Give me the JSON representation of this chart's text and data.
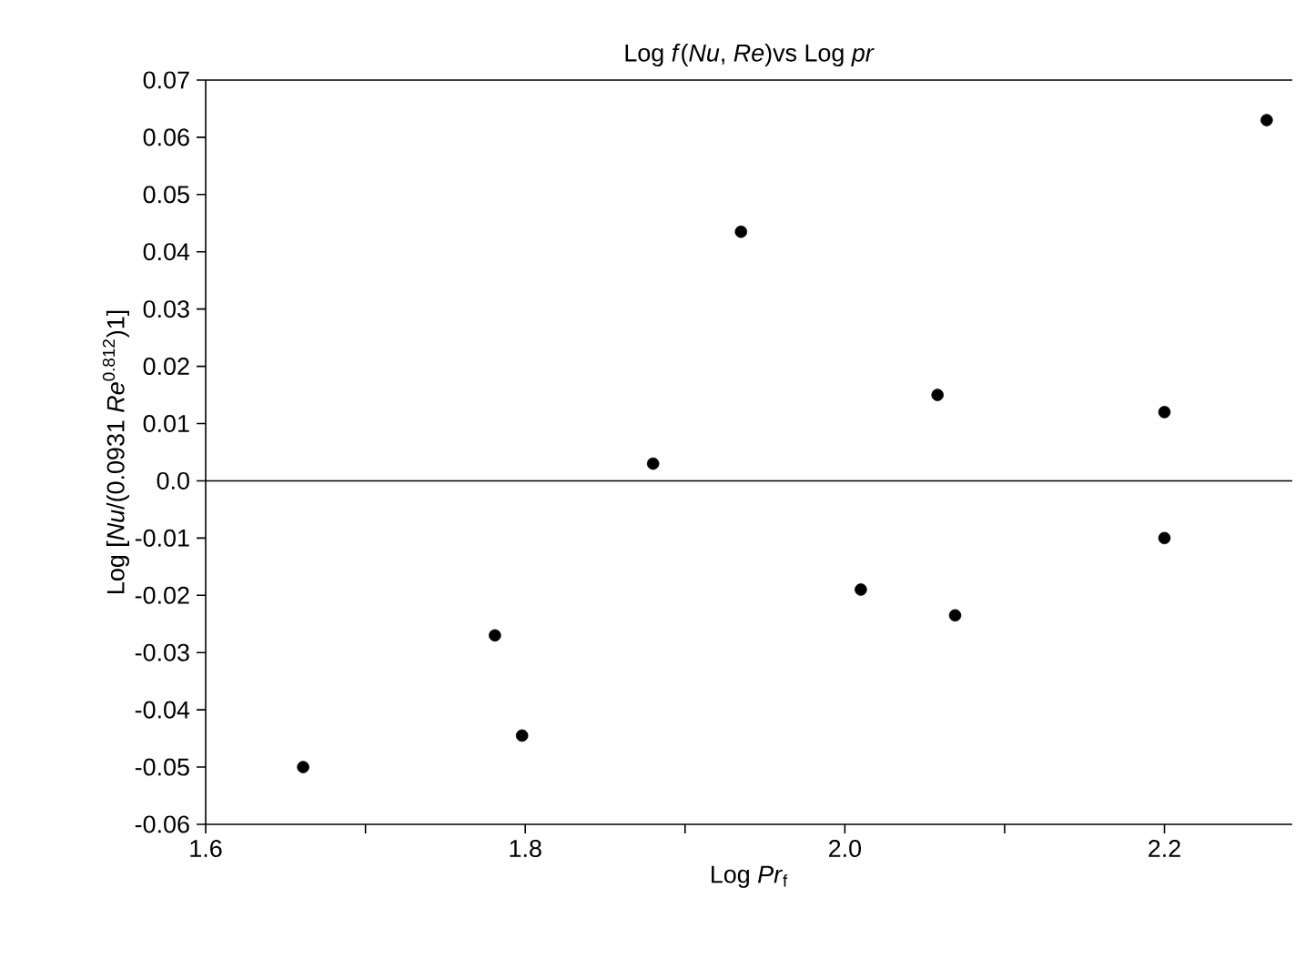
{
  "chart_data": {
    "type": "scatter",
    "title": "Log *f*(*Nu*, *Re*)vs Log *pr*",
    "xlabel": "Log *Pr*$_{f}$",
    "ylabel": "Log [*Nu*/(0.0931 *Re*$^{0.812}$)1]",
    "x": [
      1.661,
      1.781,
      1.798,
      1.88,
      1.935,
      2.01,
      2.058,
      2.069,
      2.2,
      2.2,
      2.264
    ],
    "series": [
      {
        "color": "#000000",
        "values": [
          -0.05,
          -0.027,
          -0.0445,
          0.003,
          0.0435,
          -0.019,
          0.015,
          -0.0235,
          0.012,
          -0.01,
          0.063
        ]
      }
    ],
    "marker": "circle",
    "grid": false,
    "xlim": [
      1.6,
      2.28
    ],
    "ylim": [
      -0.06,
      0.07
    ],
    "xticks": [
      {
        "value": 1.6,
        "label": "1.6"
      },
      {
        "value": 1.7,
        "label": null
      },
      {
        "value": 1.8,
        "label": "1.8"
      },
      {
        "value": 1.9,
        "label": null
      },
      {
        "value": 2.0,
        "label": "2.0"
      },
      {
        "value": 2.1,
        "label": null
      },
      {
        "value": 2.2,
        "label": "2.2"
      }
    ],
    "yticks": [
      {
        "value": -0.06,
        "label": "-0.06"
      },
      {
        "value": -0.05,
        "label": "-0.05"
      },
      {
        "value": -0.04,
        "label": "-0.04"
      },
      {
        "value": -0.03,
        "label": "-0.03"
      },
      {
        "value": -0.02,
        "label": "-0.02"
      },
      {
        "value": -0.01,
        "label": "-0.01"
      },
      {
        "value": 0.0,
        "label": "0.0"
      },
      {
        "value": 0.01,
        "label": "0.01"
      },
      {
        "value": 0.02,
        "label": "0.02"
      },
      {
        "value": 0.03,
        "label": "0.03"
      },
      {
        "value": 0.04,
        "label": "0.04"
      },
      {
        "value": 0.05,
        "label": "0.05"
      },
      {
        "value": 0.06,
        "label": "0.06"
      },
      {
        "value": 0.07,
        "label": "0.07"
      }
    ],
    "ref_lines": [
      {
        "axis": "y",
        "value": 0.0,
        "color": "#000000"
      }
    ]
  }
}
